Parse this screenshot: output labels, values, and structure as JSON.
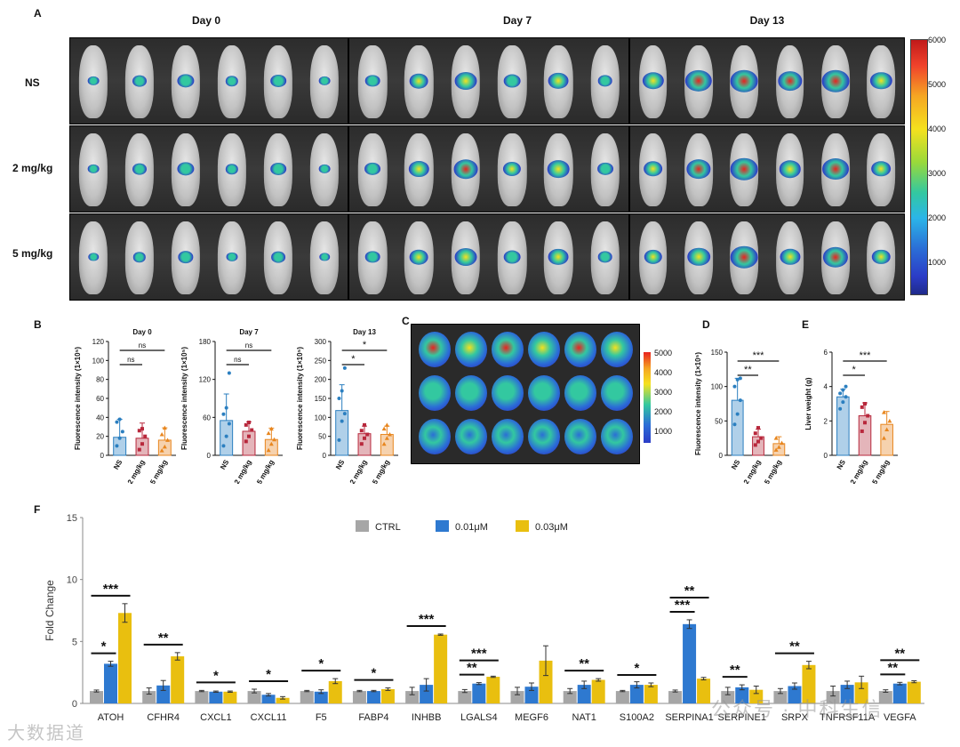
{
  "panel_letters": {
    "a": "A",
    "b": "B",
    "c": "C",
    "d": "D",
    "e": "E",
    "f": "F"
  },
  "panel_a": {
    "days": [
      "Day 0",
      "Day 7",
      "Day 13"
    ],
    "rows": [
      "NS",
      "2 mg/kg",
      "5 mg/kg"
    ],
    "colorbar_ticks": [
      "6000",
      "5000",
      "4000",
      "3000",
      "2000",
      "1000"
    ],
    "colors": {
      "low": "#2b3cc7",
      "mid": "#33c8a0",
      "high": "#f5e11e",
      "peak": "#e8231e"
    }
  },
  "panel_c": {
    "colorbar_ticks": [
      "5000",
      "4000",
      "3000",
      "2000",
      "1000"
    ]
  },
  "watermarks": {
    "left": "大数据道",
    "right": "公众号 · 中科生信"
  },
  "chart_data": [
    {
      "id": "b_day0",
      "type": "bar",
      "title": "Day 0",
      "ylabel": "Fluorescence intensity (1×10⁵)",
      "categories": [
        "NS",
        "2 mg/kg",
        "5 mg/kg"
      ],
      "values": [
        19,
        18,
        16
      ],
      "errors": [
        19,
        16,
        13
      ],
      "ylim": [
        0,
        120
      ],
      "yticks": [
        0,
        20,
        40,
        60,
        80,
        100,
        120
      ],
      "points": [
        [
          10,
          18,
          25,
          35,
          38
        ],
        [
          6,
          12,
          20,
          26,
          28
        ],
        [
          5,
          9,
          16,
          22,
          29
        ]
      ],
      "significance": [
        {
          "from": 0,
          "to": 1,
          "label": "ns"
        },
        {
          "from": 0,
          "to": 2,
          "label": "ns"
        }
      ]
    },
    {
      "id": "b_day7",
      "type": "bar",
      "title": "Day 7",
      "ylabel": "Fluorescence intensity (1×10⁵)",
      "categories": [
        "NS",
        "2 mg/kg",
        "5 mg/kg"
      ],
      "values": [
        55,
        38,
        25
      ],
      "errors": [
        42,
        15,
        18
      ],
      "ylim": [
        0,
        180
      ],
      "yticks": [
        0,
        60,
        120,
        180
      ],
      "points": [
        [
          15,
          30,
          50,
          65,
          75,
          130
        ],
        [
          22,
          30,
          40,
          48,
          52
        ],
        [
          8,
          18,
          25,
          35,
          42
        ]
      ],
      "significance": [
        {
          "from": 0,
          "to": 1,
          "label": "ns"
        },
        {
          "from": 0,
          "to": 2,
          "label": "ns"
        }
      ]
    },
    {
      "id": "b_day13",
      "type": "bar",
      "title": "Day 13",
      "ylabel": "Fluorescence intensity (1×10⁵)",
      "categories": [
        "NS",
        "2 mg/kg",
        "5 mg/kg"
      ],
      "values": [
        118,
        57,
        55
      ],
      "errors": [
        68,
        20,
        22
      ],
      "ylim": [
        0,
        300
      ],
      "yticks": [
        0,
        50,
        100,
        150,
        200,
        250,
        300
      ],
      "points": [
        [
          40,
          90,
          110,
          150,
          170,
          230
        ],
        [
          30,
          45,
          55,
          65,
          80
        ],
        [
          30,
          45,
          55,
          70,
          80
        ]
      ],
      "significance": [
        {
          "from": 0,
          "to": 1,
          "label": "*"
        },
        {
          "from": 0,
          "to": 2,
          "label": "*"
        }
      ]
    },
    {
      "id": "d",
      "type": "bar",
      "title": "",
      "ylabel": "Fluorescence intensity (1×10⁵)",
      "categories": [
        "NS",
        "2 mg/kg",
        "5 mg/kg"
      ],
      "values": [
        80,
        27,
        17
      ],
      "errors": [
        32,
        11,
        10
      ],
      "ylim": [
        0,
        150
      ],
      "yticks": [
        0,
        50,
        100,
        150
      ],
      "points": [
        [
          45,
          60,
          80,
          100,
          110,
          112
        ],
        [
          15,
          20,
          25,
          32,
          40
        ],
        [
          8,
          12,
          18,
          25
        ]
      ],
      "significance": [
        {
          "from": 0,
          "to": 1,
          "label": "**"
        },
        {
          "from": 0,
          "to": 2,
          "label": "***"
        }
      ]
    },
    {
      "id": "e",
      "type": "bar",
      "title": "",
      "ylabel": "Liver weight (g)",
      "categories": [
        "NS",
        "2 mg/kg",
        "5 mg/kg"
      ],
      "values": [
        3.4,
        2.3,
        1.8
      ],
      "errors": [
        0.45,
        0.75,
        0.75
      ],
      "ylim": [
        0,
        6
      ],
      "yticks": [
        0,
        2,
        4,
        6
      ],
      "points": [
        [
          2.7,
          3.1,
          3.4,
          3.6,
          3.8,
          4.0
        ],
        [
          1.4,
          1.9,
          2.3,
          2.8,
          3.0
        ],
        [
          1.0,
          1.5,
          2.0,
          2.5
        ]
      ],
      "significance": [
        {
          "from": 0,
          "to": 1,
          "label": "*"
        },
        {
          "from": 0,
          "to": 2,
          "label": "***"
        }
      ]
    },
    {
      "id": "f",
      "type": "bar",
      "title": "",
      "ylabel": "Fold Change",
      "categories": [
        "ATOH",
        "CFHR4",
        "CXCL1",
        "CXCL11",
        "F5",
        "FABP4",
        "INHBB",
        "LGALS4",
        "MEGF6",
        "NAT1",
        "S100A2",
        "SERPINA1",
        "SERPINE1",
        "SRPX",
        "TNFRSF11A",
        "VEGFA"
      ],
      "ylim": [
        0,
        15
      ],
      "yticks": [
        0,
        5,
        10,
        15
      ],
      "series": [
        {
          "name": "CTRL",
          "color": "#a6a6a6",
          "values": [
            1,
            1,
            1,
            1,
            1,
            1,
            1,
            1,
            1,
            1,
            1,
            1,
            1,
            1,
            1,
            1
          ],
          "errors": [
            0.08,
            0.25,
            0.05,
            0.15,
            0.05,
            0.05,
            0.3,
            0.12,
            0.3,
            0.2,
            0.05,
            0.08,
            0.3,
            0.2,
            0.4,
            0.1
          ]
        },
        {
          "name": "0.01μM",
          "color": "#2e79d0",
          "values": [
            3.2,
            1.45,
            0.95,
            0.7,
            0.95,
            1.0,
            1.5,
            1.6,
            1.35,
            1.5,
            1.5,
            6.4,
            1.3,
            1.4,
            1.5,
            1.6
          ],
          "errors": [
            0.2,
            0.4,
            0.05,
            0.1,
            0.15,
            0.05,
            0.5,
            0.08,
            0.3,
            0.3,
            0.25,
            0.35,
            0.2,
            0.25,
            0.3,
            0.1
          ]
        },
        {
          "name": "0.03μM",
          "color": "#e9bf0f",
          "values": [
            7.3,
            3.8,
            0.95,
            0.45,
            1.8,
            1.15,
            5.55,
            2.15,
            3.45,
            1.9,
            1.5,
            2.0,
            1.1,
            3.1,
            1.7,
            1.75
          ]
        },
        {
          "name": "_errors_0.03",
          "values": [
            0.75,
            0.3,
            0.05,
            0.1,
            0.2,
            0.1,
            0.05,
            0.05,
            1.2,
            0.1,
            0.15,
            0.1,
            0.3,
            0.3,
            0.5,
            0.08
          ]
        }
      ],
      "significance": [
        {
          "cat": 0,
          "to": "0.01μM",
          "label": "*"
        },
        {
          "cat": 0,
          "to": "0.03μM",
          "label": "***"
        },
        {
          "cat": 1,
          "to": "0.03μM",
          "label": "**"
        },
        {
          "cat": 2,
          "to": "0.03μM",
          "label": "*"
        },
        {
          "cat": 3,
          "to": "0.03μM",
          "label": "*"
        },
        {
          "cat": 4,
          "to": "0.03μM",
          "label": "*"
        },
        {
          "cat": 5,
          "to": "0.03μM",
          "label": "*"
        },
        {
          "cat": 6,
          "to": "0.03μM",
          "label": "***"
        },
        {
          "cat": 7,
          "to": "0.01μM",
          "label": "**"
        },
        {
          "cat": 7,
          "to": "0.03μM",
          "label": "***"
        },
        {
          "cat": 9,
          "to": "0.03μM",
          "label": "**"
        },
        {
          "cat": 10,
          "to": "0.03μM",
          "label": "*"
        },
        {
          "cat": 11,
          "to": "0.01μM",
          "label": "***"
        },
        {
          "cat": 11,
          "to": "0.03μM",
          "label": "**"
        },
        {
          "cat": 12,
          "to": "0.01μM",
          "label": "**"
        },
        {
          "cat": 13,
          "to": "0.03μM",
          "label": "**"
        },
        {
          "cat": 15,
          "to": "0.01μM",
          "label": "**"
        },
        {
          "cat": 15,
          "to": "0.03μM",
          "label": "**"
        }
      ]
    }
  ]
}
